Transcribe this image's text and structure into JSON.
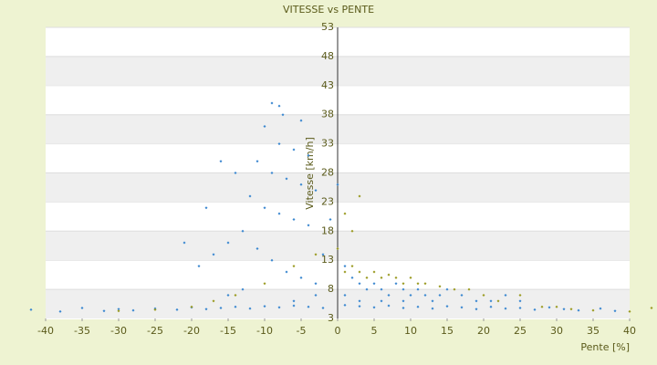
{
  "chart_data": {
    "type": "scatter",
    "title": "VITESSE vs PENTE",
    "x_label": "Pente [%]",
    "y_label": "Vitesse [km/h]",
    "xlim": [
      -40,
      40
    ],
    "ylim": [
      3,
      53
    ],
    "xticks": [
      -40,
      -35,
      -30,
      -25,
      -20,
      -15,
      -10,
      -5,
      0,
      5,
      10,
      15,
      20,
      25,
      30,
      35,
      40
    ],
    "yticks": [
      3,
      8,
      13,
      18,
      23,
      28,
      33,
      38,
      43,
      48,
      53
    ],
    "grid": true,
    "series": [
      {
        "name": "blue",
        "color": "#3a87d0",
        "x": [
          -42,
          -38,
          -35,
          -32,
          -30,
          -28,
          -25,
          -22,
          -20,
          -18,
          -16,
          -14,
          -12,
          -10,
          -8,
          -6,
          -4,
          -2,
          1,
          3,
          5,
          7,
          9,
          11,
          13,
          15,
          17,
          19,
          21,
          23,
          25,
          27,
          29,
          31,
          33,
          36,
          38,
          -9,
          -8,
          -7.5,
          -5,
          -10,
          -8,
          -6,
          -4,
          -11,
          -9,
          -7,
          -5,
          -3,
          -12,
          -10,
          -8,
          -6,
          -4,
          -14,
          -16,
          -13,
          -15,
          -17,
          -19,
          -21,
          -18,
          -11,
          -9,
          -7,
          -5,
          -3,
          -2,
          -1,
          0,
          1,
          2,
          3,
          4,
          5,
          6,
          7,
          8,
          9,
          10,
          11,
          12,
          13,
          14,
          15,
          17,
          19,
          21,
          23,
          25,
          -13,
          -15,
          -6,
          -3,
          1,
          3,
          6,
          9
        ],
        "values": [
          4.5,
          4.2,
          4.8,
          4.3,
          4.6,
          4.4,
          4.7,
          4.5,
          4.9,
          4.6,
          4.8,
          5,
          4.7,
          5.1,
          4.9,
          5.2,
          5,
          4.8,
          5.3,
          5.1,
          4.9,
          5.2,
          4.8,
          5,
          4.7,
          5.1,
          4.9,
          4.6,
          5,
          4.7,
          4.8,
          4.5,
          4.9,
          4.6,
          4.4,
          4.7,
          4.3,
          40,
          39.5,
          38,
          37,
          36,
          33,
          32,
          31,
          30,
          28,
          27,
          26,
          25,
          24,
          22,
          21,
          20,
          19,
          28,
          30,
          18,
          16,
          14,
          12,
          16,
          22,
          15,
          13,
          11,
          10,
          9,
          14,
          20,
          26,
          12,
          10,
          9,
          8,
          9,
          8,
          7,
          9,
          8,
          7,
          8,
          7,
          6,
          7,
          8,
          7,
          6,
          6,
          7,
          6,
          8,
          7,
          6,
          7,
          7,
          6,
          6,
          6
        ]
      },
      {
        "name": "olive",
        "color": "#9a9a20",
        "x": [
          1,
          2,
          3,
          4,
          5,
          6,
          7,
          8,
          9,
          10,
          11,
          12,
          14,
          16,
          18,
          20,
          22,
          25,
          28,
          30,
          -17,
          -20,
          -14,
          -10,
          -6,
          -3,
          0,
          1,
          2,
          3,
          -30,
          -25,
          32,
          35,
          40,
          43
        ],
        "values": [
          11,
          12,
          11,
          10,
          11,
          10,
          10.5,
          10,
          9,
          10,
          9,
          9,
          8.5,
          8,
          8,
          7,
          6,
          7,
          5,
          5,
          6,
          5,
          7,
          9,
          12,
          14,
          15,
          21,
          18,
          24,
          4.3,
          4.5,
          4.6,
          4.4,
          4.2,
          4.8
        ]
      }
    ]
  }
}
